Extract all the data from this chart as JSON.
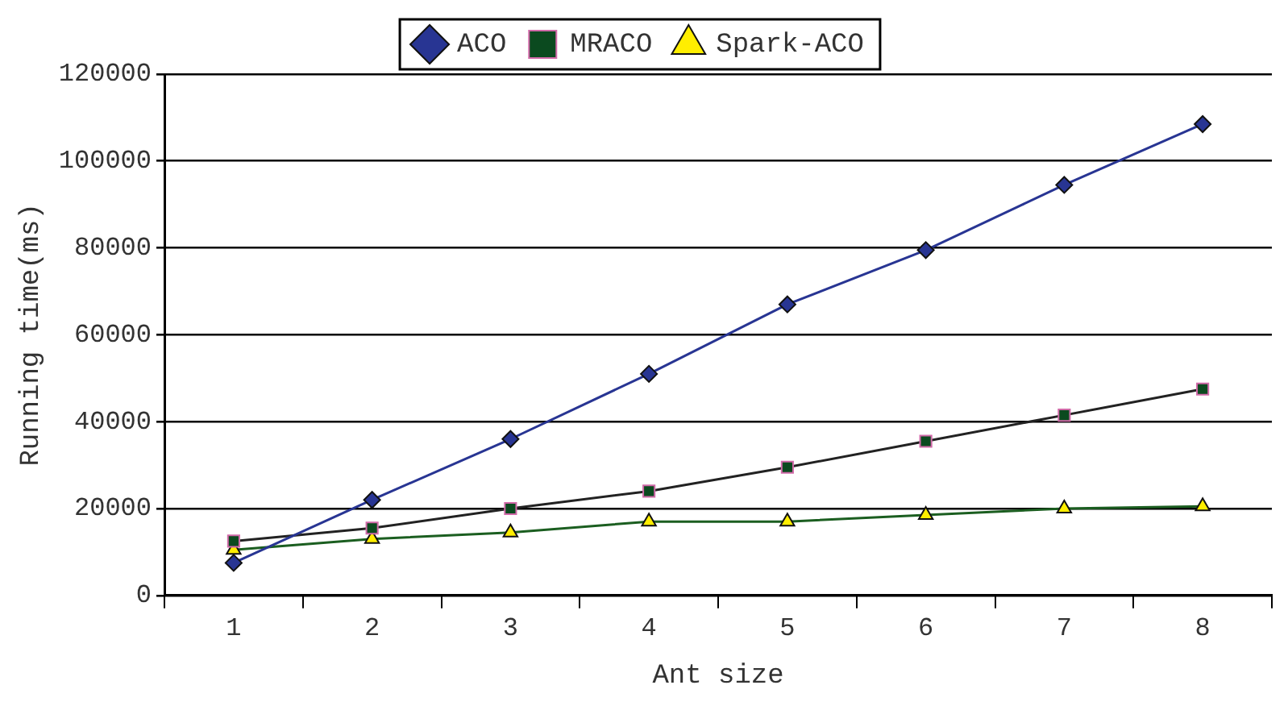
{
  "chart_data": {
    "type": "line",
    "xlabel": "Ant size",
    "ylabel": "Running time(ms)",
    "categories": [
      "1",
      "2",
      "3",
      "4",
      "5",
      "6",
      "7",
      "8"
    ],
    "series": [
      {
        "name": "ACO",
        "color": "#283593",
        "marker": "diamond",
        "values": [
          7500,
          22000,
          36000,
          51000,
          67000,
          79500,
          94500,
          108500
        ]
      },
      {
        "name": "MRACO",
        "color": "#222222",
        "marker": "square",
        "values": [
          12500,
          15500,
          20000,
          24000,
          29500,
          35500,
          41500,
          47500
        ]
      },
      {
        "name": "Spark-ACO",
        "color": "#1b5e20",
        "marker": "triangle",
        "values": [
          10500,
          13000,
          14500,
          17000,
          17000,
          18500,
          20000,
          20500
        ]
      }
    ],
    "ylim": [
      0,
      120000
    ],
    "yticks": [
      0,
      20000,
      40000,
      60000,
      80000,
      100000,
      120000
    ],
    "grid": "y",
    "legend": "top",
    "line_style": "solid"
  }
}
